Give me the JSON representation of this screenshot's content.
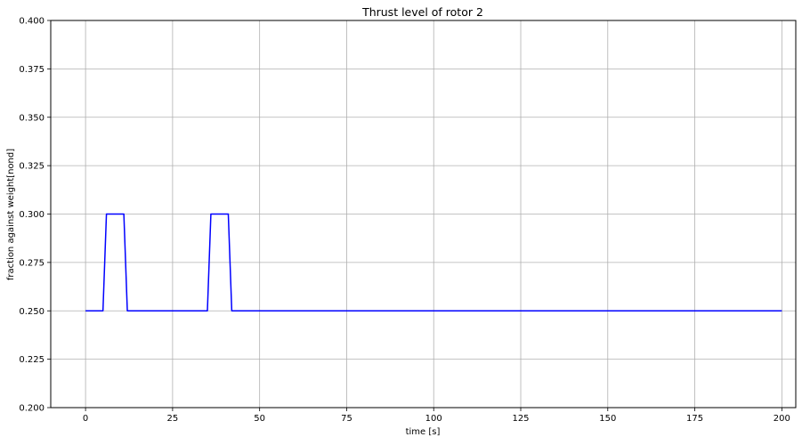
{
  "chart_data": {
    "type": "line",
    "title": "Thrust level of rotor 2",
    "xlabel": "time [s]",
    "ylabel": "fraction against weight[nond]",
    "xlim": [
      -10,
      204
    ],
    "ylim": [
      0.2,
      0.4
    ],
    "x_ticks": [
      0,
      25,
      50,
      75,
      100,
      125,
      150,
      175,
      200
    ],
    "x_tick_labels": [
      "0",
      "25",
      "50",
      "75",
      "100",
      "125",
      "150",
      "175",
      "200"
    ],
    "y_ticks": [
      0.2,
      0.225,
      0.25,
      0.275,
      0.3,
      0.325,
      0.35,
      0.375,
      0.4
    ],
    "y_tick_labels": [
      "0.200",
      "0.225",
      "0.250",
      "0.275",
      "0.300",
      "0.325",
      "0.350",
      "0.375",
      "0.400"
    ],
    "grid": true,
    "series": [
      {
        "color": "#0000ff",
        "x": [
          0,
          5,
          6,
          11,
          12,
          35,
          36,
          41,
          42,
          200
        ],
        "y": [
          0.25,
          0.25,
          0.3,
          0.3,
          0.25,
          0.25,
          0.3,
          0.3,
          0.25,
          0.25
        ]
      }
    ]
  }
}
